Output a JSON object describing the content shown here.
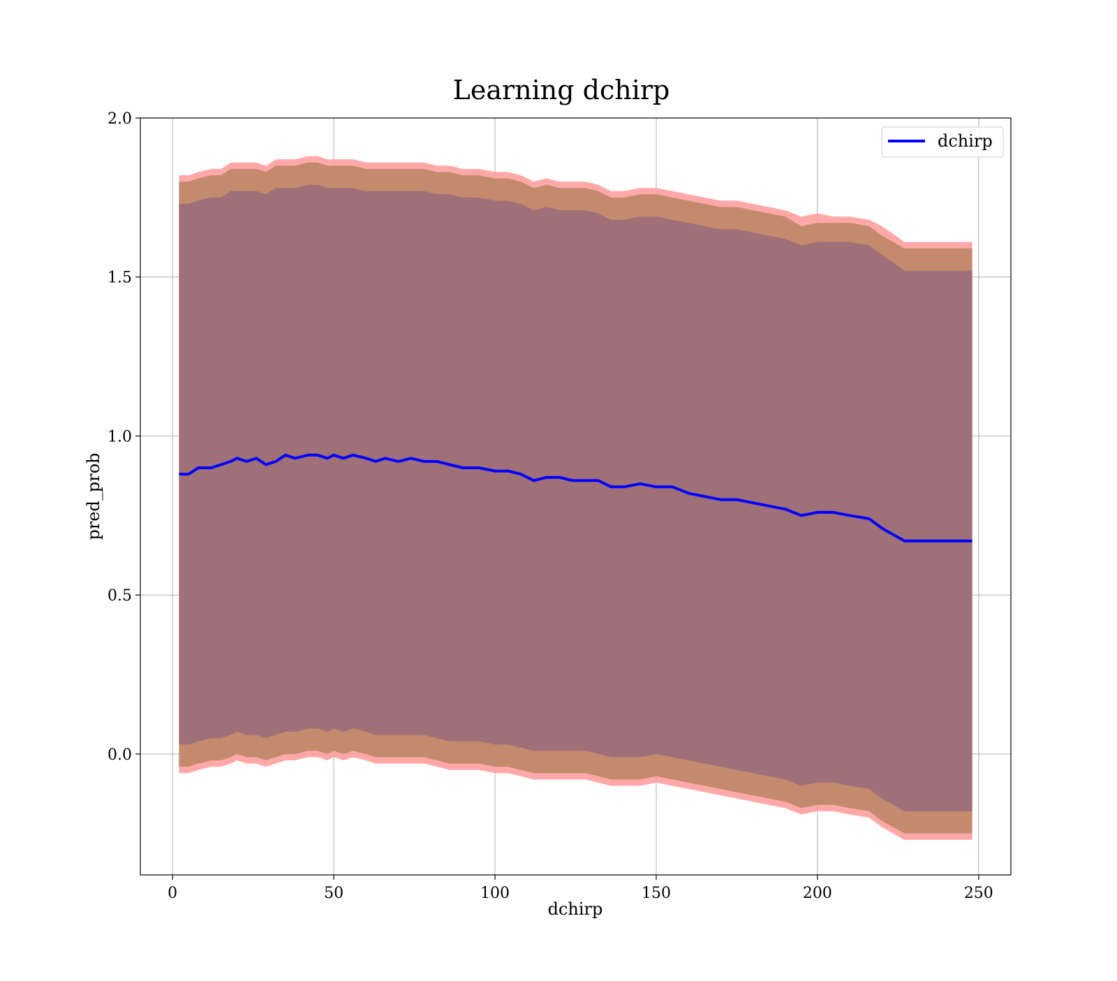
{
  "chart_data": {
    "type": "area",
    "title": "Learning dchirp",
    "xlabel": "dchirp",
    "ylabel": "pred_prob",
    "xlim": [
      -10,
      260
    ],
    "ylim": [
      -0.38,
      2.0
    ],
    "xticks": [
      0,
      50,
      100,
      150,
      200,
      250
    ],
    "yticks": [
      0.0,
      0.5,
      1.0,
      1.5,
      2.0
    ],
    "xtick_labels": [
      "0",
      "50",
      "100",
      "150",
      "200",
      "250"
    ],
    "ytick_labels": [
      "0.0",
      "0.5",
      "1.0",
      "1.5",
      "2.0"
    ],
    "grid": true,
    "legend": {
      "position": "top-right",
      "entries": [
        "dchirp"
      ]
    },
    "colors": {
      "mean_line": "#0000ff",
      "outer_band": "#ff9999",
      "middle_band": "#c38a6e",
      "inner_band": "#a07078"
    },
    "series": [
      {
        "name": "dchirp",
        "x": [
          2,
          5,
          8,
          12,
          15,
          18,
          20,
          23,
          26,
          29,
          32,
          35,
          38,
          42,
          45,
          48,
          50,
          53,
          56,
          60,
          63,
          66,
          70,
          74,
          78,
          82,
          86,
          90,
          95,
          100,
          104,
          108,
          112,
          116,
          120,
          124,
          128,
          132,
          136,
          140,
          145,
          150,
          155,
          160,
          165,
          170,
          175,
          180,
          185,
          190,
          195,
          200,
          205,
          210,
          216,
          220,
          227,
          236,
          248
        ],
        "y": [
          0.88,
          0.88,
          0.9,
          0.9,
          0.91,
          0.92,
          0.93,
          0.92,
          0.93,
          0.91,
          0.92,
          0.94,
          0.93,
          0.94,
          0.94,
          0.93,
          0.94,
          0.93,
          0.94,
          0.93,
          0.92,
          0.93,
          0.92,
          0.93,
          0.92,
          0.92,
          0.91,
          0.9,
          0.9,
          0.89,
          0.89,
          0.88,
          0.86,
          0.87,
          0.87,
          0.86,
          0.86,
          0.86,
          0.84,
          0.84,
          0.85,
          0.84,
          0.84,
          0.82,
          0.81,
          0.8,
          0.8,
          0.79,
          0.78,
          0.77,
          0.75,
          0.76,
          0.76,
          0.75,
          0.74,
          0.71,
          0.67,
          0.67,
          0.67
        ]
      }
    ],
    "bands": [
      {
        "x": [
          2,
          5,
          8,
          12,
          15,
          18,
          20,
          23,
          26,
          29,
          32,
          35,
          38,
          42,
          45,
          48,
          50,
          53,
          56,
          60,
          63,
          66,
          70,
          74,
          78,
          82,
          86,
          90,
          95,
          100,
          104,
          108,
          112,
          116,
          120,
          124,
          128,
          132,
          136,
          140,
          145,
          150,
          155,
          160,
          165,
          170,
          175,
          180,
          185,
          190,
          195,
          200,
          205,
          210,
          216,
          220,
          227,
          236,
          248
        ],
        "upper": [
          1.82,
          1.82,
          1.83,
          1.84,
          1.84,
          1.86,
          1.86,
          1.86,
          1.86,
          1.85,
          1.87,
          1.87,
          1.87,
          1.88,
          1.88,
          1.87,
          1.87,
          1.87,
          1.87,
          1.86,
          1.86,
          1.86,
          1.86,
          1.86,
          1.86,
          1.85,
          1.85,
          1.84,
          1.84,
          1.83,
          1.83,
          1.82,
          1.8,
          1.81,
          1.8,
          1.8,
          1.8,
          1.79,
          1.77,
          1.77,
          1.78,
          1.78,
          1.77,
          1.76,
          1.75,
          1.74,
          1.74,
          1.73,
          1.72,
          1.71,
          1.69,
          1.7,
          1.69,
          1.69,
          1.68,
          1.66,
          1.61,
          1.61,
          1.61
        ],
        "lower": [
          -0.06,
          -0.06,
          -0.05,
          -0.04,
          -0.04,
          -0.03,
          -0.02,
          -0.03,
          -0.03,
          -0.04,
          -0.03,
          -0.02,
          -0.02,
          -0.01,
          -0.01,
          -0.02,
          -0.01,
          -0.02,
          -0.01,
          -0.02,
          -0.03,
          -0.03,
          -0.03,
          -0.03,
          -0.03,
          -0.04,
          -0.05,
          -0.05,
          -0.05,
          -0.06,
          -0.06,
          -0.07,
          -0.08,
          -0.08,
          -0.08,
          -0.08,
          -0.08,
          -0.09,
          -0.1,
          -0.1,
          -0.1,
          -0.09,
          -0.1,
          -0.11,
          -0.12,
          -0.13,
          -0.14,
          -0.15,
          -0.16,
          -0.17,
          -0.19,
          -0.18,
          -0.18,
          -0.19,
          -0.2,
          -0.23,
          -0.27,
          -0.27,
          -0.27
        ]
      },
      {
        "x": [
          2,
          5,
          8,
          12,
          15,
          18,
          20,
          23,
          26,
          29,
          32,
          35,
          38,
          42,
          45,
          48,
          50,
          53,
          56,
          60,
          63,
          66,
          70,
          74,
          78,
          82,
          86,
          90,
          95,
          100,
          104,
          108,
          112,
          116,
          120,
          124,
          128,
          132,
          136,
          140,
          145,
          150,
          155,
          160,
          165,
          170,
          175,
          180,
          185,
          190,
          195,
          200,
          205,
          210,
          216,
          220,
          227,
          236,
          248
        ],
        "upper": [
          1.8,
          1.8,
          1.81,
          1.82,
          1.82,
          1.84,
          1.84,
          1.84,
          1.84,
          1.83,
          1.85,
          1.85,
          1.85,
          1.86,
          1.86,
          1.85,
          1.85,
          1.85,
          1.85,
          1.84,
          1.84,
          1.84,
          1.84,
          1.84,
          1.84,
          1.83,
          1.83,
          1.82,
          1.82,
          1.81,
          1.81,
          1.8,
          1.78,
          1.79,
          1.78,
          1.78,
          1.78,
          1.77,
          1.75,
          1.75,
          1.76,
          1.76,
          1.75,
          1.74,
          1.73,
          1.72,
          1.72,
          1.71,
          1.7,
          1.69,
          1.66,
          1.67,
          1.67,
          1.67,
          1.66,
          1.63,
          1.59,
          1.59,
          1.59
        ],
        "lower": [
          -0.04,
          -0.04,
          -0.03,
          -0.02,
          -0.02,
          -0.01,
          0.0,
          -0.01,
          -0.01,
          -0.02,
          -0.01,
          0.0,
          0.0,
          0.01,
          0.01,
          0.0,
          0.01,
          0.0,
          0.01,
          0.0,
          -0.01,
          -0.01,
          -0.01,
          -0.01,
          -0.01,
          -0.02,
          -0.03,
          -0.03,
          -0.03,
          -0.04,
          -0.04,
          -0.05,
          -0.06,
          -0.06,
          -0.06,
          -0.06,
          -0.06,
          -0.07,
          -0.08,
          -0.08,
          -0.08,
          -0.07,
          -0.08,
          -0.09,
          -0.1,
          -0.11,
          -0.12,
          -0.13,
          -0.14,
          -0.15,
          -0.17,
          -0.16,
          -0.16,
          -0.17,
          -0.18,
          -0.21,
          -0.25,
          -0.25,
          -0.25
        ]
      },
      {
        "x": [
          2,
          5,
          8,
          12,
          15,
          18,
          20,
          23,
          26,
          29,
          32,
          35,
          38,
          42,
          45,
          48,
          50,
          53,
          56,
          60,
          63,
          66,
          70,
          74,
          78,
          82,
          86,
          90,
          95,
          100,
          104,
          108,
          112,
          116,
          120,
          124,
          128,
          132,
          136,
          140,
          145,
          150,
          155,
          160,
          165,
          170,
          175,
          180,
          185,
          190,
          195,
          200,
          205,
          210,
          216,
          220,
          227,
          236,
          248
        ],
        "upper": [
          1.73,
          1.73,
          1.74,
          1.75,
          1.75,
          1.77,
          1.77,
          1.77,
          1.77,
          1.76,
          1.78,
          1.78,
          1.78,
          1.79,
          1.79,
          1.78,
          1.78,
          1.78,
          1.78,
          1.77,
          1.77,
          1.77,
          1.77,
          1.77,
          1.77,
          1.76,
          1.76,
          1.75,
          1.75,
          1.74,
          1.74,
          1.73,
          1.71,
          1.72,
          1.71,
          1.71,
          1.71,
          1.7,
          1.68,
          1.68,
          1.69,
          1.69,
          1.68,
          1.67,
          1.66,
          1.65,
          1.65,
          1.64,
          1.63,
          1.62,
          1.6,
          1.61,
          1.61,
          1.61,
          1.6,
          1.57,
          1.52,
          1.52,
          1.52
        ],
        "lower": [
          0.03,
          0.03,
          0.04,
          0.05,
          0.05,
          0.06,
          0.07,
          0.06,
          0.06,
          0.05,
          0.06,
          0.07,
          0.07,
          0.08,
          0.08,
          0.07,
          0.08,
          0.07,
          0.08,
          0.07,
          0.06,
          0.06,
          0.06,
          0.06,
          0.06,
          0.05,
          0.04,
          0.04,
          0.04,
          0.03,
          0.03,
          0.02,
          0.01,
          0.01,
          0.01,
          0.01,
          0.01,
          0.0,
          -0.01,
          -0.01,
          -0.01,
          0.0,
          -0.01,
          -0.02,
          -0.03,
          -0.04,
          -0.05,
          -0.06,
          -0.07,
          -0.08,
          -0.1,
          -0.09,
          -0.09,
          -0.1,
          -0.11,
          -0.14,
          -0.18,
          -0.18,
          -0.18
        ]
      }
    ]
  }
}
